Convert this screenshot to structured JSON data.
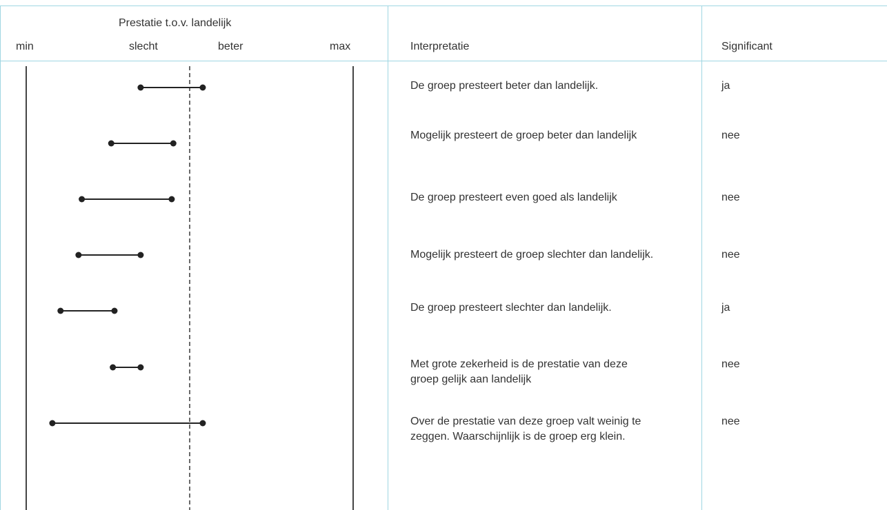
{
  "header": {
    "chart_title": "Prestatie t.o.v. landelijk",
    "label_min": "min",
    "label_slecht": "slecht",
    "label_beter": "beter",
    "label_max": "max",
    "col_interpretatie": "Interpretatie",
    "col_significant": "Significant"
  },
  "rows": [
    {
      "interpretatie": "De groep presteert beter dan landelijk.",
      "significant": "ja",
      "low": 0.7,
      "high": 1.08
    },
    {
      "interpretatie": "Mogelijk presteert de groep beter dan landelijk",
      "significant": "nee",
      "low": 0.52,
      "high": 0.9
    },
    {
      "interpretatie": "De groep presteert even goed als landelijk",
      "significant": "nee",
      "low": 0.34,
      "high": 0.89
    },
    {
      "interpretatie": "Mogelijk presteert de groep slechter dan landelijk.",
      "significant": "nee",
      "low": 0.32,
      "high": 0.7
    },
    {
      "interpretatie": "De groep presteert slechter dan landelijk.",
      "significant": "ja",
      "low": 0.21,
      "high": 0.54
    },
    {
      "interpretatie": "Met grote zekerheid is de prestatie van deze groep gelijk aan landelijk",
      "significant": "nee",
      "low": 0.53,
      "high": 0.7
    },
    {
      "interpretatie": "Over de prestatie van deze groep valt weinig te zeggen. Waarschijnlijk is de groep erg klein.",
      "significant": "nee",
      "low": 0.16,
      "high": 1.08
    }
  ],
  "colors": {
    "border": "#9fd6e2",
    "line": "#222222",
    "text": "#333333"
  }
}
